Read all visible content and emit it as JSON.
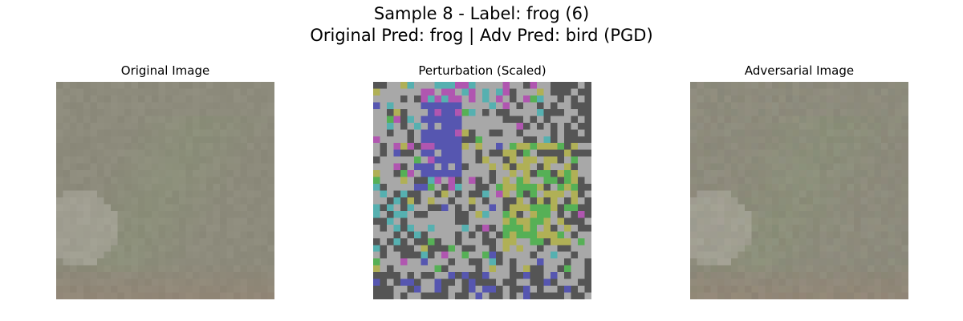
{
  "figure": {
    "suptitle_line1": "Sample 8 - Label: frog (6)",
    "suptitle_line2": "Original Pred: frog | Adv Pred: bird (PGD)"
  },
  "panels": [
    {
      "title": "Original Image",
      "kind": "original"
    },
    {
      "title": "Perturbation (Scaled)",
      "kind": "perturbation"
    },
    {
      "title": "Adversarial Image",
      "kind": "adversarial"
    }
  ],
  "colors": {
    "background": "#ffffff",
    "image_base": "#8d8b7c",
    "image_light": "#a8a69a",
    "image_green": "#8a9278",
    "image_brown": "#928676",
    "perturb_gray_dark": "#555555",
    "perturb_gray_light": "#a8a8a8",
    "perturb_blue": "#5656b0",
    "perturb_magenta": "#b056b0",
    "perturb_cyan": "#56b0b0",
    "perturb_yellow": "#b0b056",
    "perturb_green": "#56b056"
  }
}
